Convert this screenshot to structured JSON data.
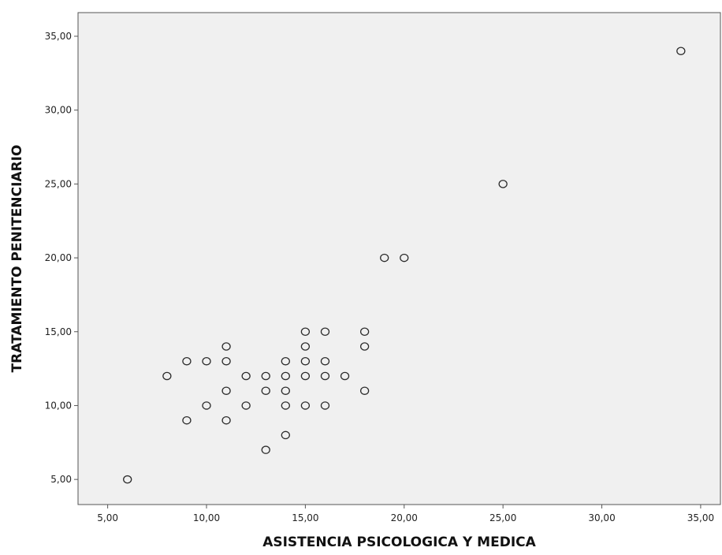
{
  "chart_data": {
    "type": "scatter",
    "title": "",
    "xlabel": "ASISTENCIA PSICOLOGICA Y MEDICA",
    "ylabel": "TRATAMIENTO PENITENCIARIO",
    "xlim": [
      3.5,
      36.0
    ],
    "ylim": [
      3.3,
      36.6
    ],
    "x_ticks": [
      5,
      10,
      15,
      20,
      25,
      30,
      35
    ],
    "y_ticks": [
      5,
      10,
      15,
      20,
      25,
      30,
      35
    ],
    "x_tick_labels": [
      "5,00",
      "10,00",
      "15,00",
      "20,00",
      "25,00",
      "30,00",
      "35,00"
    ],
    "y_tick_labels": [
      "5,00",
      "10,00",
      "15,00",
      "20,00",
      "25,00",
      "30,00",
      "35,00"
    ],
    "grid": false,
    "plot_background": "#f0f0f0",
    "marker_color": "#2b2b2b",
    "series": [
      {
        "points": [
          [
            6,
            5
          ],
          [
            8,
            12
          ],
          [
            9,
            13
          ],
          [
            9,
            9
          ],
          [
            10,
            13
          ],
          [
            10,
            10
          ],
          [
            11,
            14
          ],
          [
            11,
            13
          ],
          [
            11,
            11
          ],
          [
            11,
            9
          ],
          [
            12,
            12
          ],
          [
            12,
            10
          ],
          [
            13,
            12
          ],
          [
            13,
            11
          ],
          [
            13,
            7
          ],
          [
            14,
            13
          ],
          [
            14,
            12
          ],
          [
            14,
            11
          ],
          [
            14,
            10
          ],
          [
            14,
            8
          ],
          [
            15,
            15
          ],
          [
            15,
            14
          ],
          [
            15,
            13
          ],
          [
            15,
            12
          ],
          [
            15,
            10
          ],
          [
            16,
            15
          ],
          [
            16,
            13
          ],
          [
            16,
            12
          ],
          [
            16,
            10
          ],
          [
            17,
            12
          ],
          [
            18,
            15
          ],
          [
            18,
            14
          ],
          [
            18,
            11
          ],
          [
            19,
            20
          ],
          [
            20,
            20
          ],
          [
            25,
            25
          ],
          [
            34,
            34
          ]
        ]
      }
    ]
  }
}
